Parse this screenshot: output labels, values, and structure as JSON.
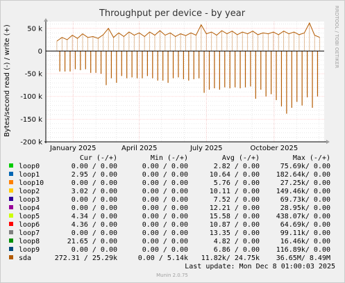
{
  "colors": {
    "background": "#F0F0F0",
    "canvas": "#FFFFFF",
    "grid_major": "#FFC8C8",
    "grid_minor": "#D8D8D8",
    "text": "#000000",
    "muted": "#A0A0A0",
    "sda": "#B35A00"
  },
  "chart_data": {
    "type": "line",
    "title": "Throughput per device - by year",
    "ylabel": "Bytes/second read (-) / write (+)",
    "ylim": [
      -200000,
      65000
    ],
    "y_ticks": [
      {
        "value": 50000,
        "label": "50 k"
      },
      {
        "value": 0,
        "label": "0"
      },
      {
        "value": -50000,
        "label": "-50 k"
      },
      {
        "value": -100000,
        "label": "-100 k"
      },
      {
        "value": -150000,
        "label": "-150 k"
      },
      {
        "value": -200000,
        "label": "-200 k"
      }
    ],
    "x_range": [
      "2024-11-25",
      "2025-12-08"
    ],
    "x_ticks": [
      {
        "date": "2025-01-01",
        "label": "January 2025"
      },
      {
        "date": "2025-04-01",
        "label": "April 2025"
      },
      {
        "date": "2025-07-01",
        "label": "July 2025"
      },
      {
        "date": "2025-10-01",
        "label": "October 2025"
      }
    ],
    "grid": true,
    "legend_position": "bottom",
    "series": [
      {
        "name": "sda",
        "color": "#B35A00",
        "read_spikes": [
          {
            "date": "2024-12-14",
            "value": -45000
          },
          {
            "date": "2024-12-21",
            "value": -45000
          },
          {
            "date": "2024-12-28",
            "value": -45000
          },
          {
            "date": "2025-01-04",
            "value": -40000
          },
          {
            "date": "2025-01-11",
            "value": -42000
          },
          {
            "date": "2025-01-18",
            "value": -40000
          },
          {
            "date": "2025-01-25",
            "value": -48000
          },
          {
            "date": "2025-02-01",
            "value": -48000
          },
          {
            "date": "2025-02-08",
            "value": -50000
          },
          {
            "date": "2025-02-15",
            "value": -75000
          },
          {
            "date": "2025-02-22",
            "value": -60000
          },
          {
            "date": "2025-03-01",
            "value": -70000
          },
          {
            "date": "2025-03-08",
            "value": -55000
          },
          {
            "date": "2025-03-15",
            "value": -60000
          },
          {
            "date": "2025-03-22",
            "value": -58000
          },
          {
            "date": "2025-03-29",
            "value": -60000
          },
          {
            "date": "2025-04-05",
            "value": -60000
          },
          {
            "date": "2025-04-12",
            "value": -55000
          },
          {
            "date": "2025-04-19",
            "value": -60000
          },
          {
            "date": "2025-04-26",
            "value": -65000
          },
          {
            "date": "2025-05-03",
            "value": -65000
          },
          {
            "date": "2025-05-10",
            "value": -70000
          },
          {
            "date": "2025-05-17",
            "value": -60000
          },
          {
            "date": "2025-05-24",
            "value": -58000
          },
          {
            "date": "2025-05-31",
            "value": -62000
          },
          {
            "date": "2025-06-07",
            "value": -65000
          },
          {
            "date": "2025-06-14",
            "value": -62000
          },
          {
            "date": "2025-06-21",
            "value": -60000
          },
          {
            "date": "2025-06-28",
            "value": -92000
          },
          {
            "date": "2025-07-05",
            "value": -85000
          },
          {
            "date": "2025-07-12",
            "value": -82000
          },
          {
            "date": "2025-07-19",
            "value": -85000
          },
          {
            "date": "2025-07-26",
            "value": -80000
          },
          {
            "date": "2025-08-02",
            "value": -82000
          },
          {
            "date": "2025-08-09",
            "value": -80000
          },
          {
            "date": "2025-08-16",
            "value": -82000
          },
          {
            "date": "2025-08-23",
            "value": -80000
          },
          {
            "date": "2025-08-30",
            "value": -78000
          },
          {
            "date": "2025-09-06",
            "value": -105000
          },
          {
            "date": "2025-09-13",
            "value": -85000
          },
          {
            "date": "2025-09-20",
            "value": -100000
          },
          {
            "date": "2025-09-27",
            "value": -95000
          },
          {
            "date": "2025-10-04",
            "value": -108000
          },
          {
            "date": "2025-10-11",
            "value": -122000
          },
          {
            "date": "2025-10-18",
            "value": -138000
          },
          {
            "date": "2025-10-25",
            "value": -125000
          },
          {
            "date": "2025-11-01",
            "value": -112000
          },
          {
            "date": "2025-11-08",
            "value": -120000
          },
          {
            "date": "2025-11-15",
            "value": -102000
          },
          {
            "date": "2025-11-22",
            "value": -125000
          },
          {
            "date": "2025-11-29",
            "value": -100000
          }
        ],
        "write_points": [
          {
            "date": "2024-12-10",
            "value": 22000
          },
          {
            "date": "2024-12-17",
            "value": 30000
          },
          {
            "date": "2024-12-24",
            "value": 25000
          },
          {
            "date": "2024-12-31",
            "value": 35000
          },
          {
            "date": "2025-01-07",
            "value": 28000
          },
          {
            "date": "2025-01-14",
            "value": 38000
          },
          {
            "date": "2025-01-21",
            "value": 30000
          },
          {
            "date": "2025-01-28",
            "value": 32000
          },
          {
            "date": "2025-02-04",
            "value": 28000
          },
          {
            "date": "2025-02-11",
            "value": 36000
          },
          {
            "date": "2025-02-18",
            "value": 50000
          },
          {
            "date": "2025-02-25",
            "value": 30000
          },
          {
            "date": "2025-03-04",
            "value": 40000
          },
          {
            "date": "2025-03-11",
            "value": 32000
          },
          {
            "date": "2025-03-18",
            "value": 42000
          },
          {
            "date": "2025-03-25",
            "value": 35000
          },
          {
            "date": "2025-04-01",
            "value": 40000
          },
          {
            "date": "2025-04-08",
            "value": 32000
          },
          {
            "date": "2025-04-15",
            "value": 42000
          },
          {
            "date": "2025-04-22",
            "value": 35000
          },
          {
            "date": "2025-04-29",
            "value": 45000
          },
          {
            "date": "2025-05-06",
            "value": 35000
          },
          {
            "date": "2025-05-13",
            "value": 40000
          },
          {
            "date": "2025-05-20",
            "value": 32000
          },
          {
            "date": "2025-05-27",
            "value": 38000
          },
          {
            "date": "2025-06-03",
            "value": 34000
          },
          {
            "date": "2025-06-10",
            "value": 40000
          },
          {
            "date": "2025-06-17",
            "value": 35000
          },
          {
            "date": "2025-06-24",
            "value": 58000
          },
          {
            "date": "2025-07-01",
            "value": 38000
          },
          {
            "date": "2025-07-08",
            "value": 42000
          },
          {
            "date": "2025-07-15",
            "value": 35000
          },
          {
            "date": "2025-07-22",
            "value": 45000
          },
          {
            "date": "2025-07-29",
            "value": 38000
          },
          {
            "date": "2025-08-05",
            "value": 44000
          },
          {
            "date": "2025-08-12",
            "value": 36000
          },
          {
            "date": "2025-08-19",
            "value": 42000
          },
          {
            "date": "2025-08-26",
            "value": 38000
          },
          {
            "date": "2025-09-02",
            "value": 44000
          },
          {
            "date": "2025-09-09",
            "value": 36000
          },
          {
            "date": "2025-09-16",
            "value": 40000
          },
          {
            "date": "2025-09-23",
            "value": 38000
          },
          {
            "date": "2025-09-30",
            "value": 42000
          },
          {
            "date": "2025-10-07",
            "value": 36000
          },
          {
            "date": "2025-10-14",
            "value": 44000
          },
          {
            "date": "2025-10-21",
            "value": 38000
          },
          {
            "date": "2025-10-28",
            "value": 42000
          },
          {
            "date": "2025-11-04",
            "value": 36000
          },
          {
            "date": "2025-11-11",
            "value": 40000
          },
          {
            "date": "2025-11-18",
            "value": 62000
          },
          {
            "date": "2025-11-25",
            "value": 35000
          },
          {
            "date": "2025-12-02",
            "value": 30000
          }
        ]
      }
    ]
  },
  "legend": {
    "headers": {
      "cur": "Cur (-/+)",
      "min": "Min (-/+)",
      "avg": "Avg (-/+)",
      "max": "Max (-/+)"
    },
    "rows": [
      {
        "name": "loop0",
        "color": "#00CC00",
        "cur": "0.00 /  0.00",
        "min": "0.00 /  0.00",
        "avg": "2.82 /  0.00",
        "max": "75.69k/  0.00"
      },
      {
        "name": "loop1",
        "color": "#0066B3",
        "cur": "2.95 /  0.00",
        "min": "0.00 /  0.00",
        "avg": "10.64 /  0.00",
        "max": "182.64k/  0.00"
      },
      {
        "name": "loop10",
        "color": "#FF8000",
        "cur": "0.00 /  0.00",
        "min": "0.00 /  0.00",
        "avg": "5.76 /  0.00",
        "max": "27.25k/  0.00"
      },
      {
        "name": "loop2",
        "color": "#FFCC00",
        "cur": "3.02 /  0.00",
        "min": "0.00 /  0.00",
        "avg": "10.11 /  0.00",
        "max": "149.46k/  0.00"
      },
      {
        "name": "loop3",
        "color": "#330099",
        "cur": "0.00 /  0.00",
        "min": "0.00 /  0.00",
        "avg": "7.52 /  0.00",
        "max": "69.73k/  0.00"
      },
      {
        "name": "loop4",
        "color": "#990099",
        "cur": "0.00 /  0.00",
        "min": "0.00 /  0.00",
        "avg": "12.21 /  0.00",
        "max": "28.95k/  0.00"
      },
      {
        "name": "loop5",
        "color": "#CCFF00",
        "cur": "4.34 /  0.00",
        "min": "0.00 /  0.00",
        "avg": "15.58 /  0.00",
        "max": "438.07k/  0.00"
      },
      {
        "name": "loop6",
        "color": "#FF0000",
        "cur": "4.36 /  0.00",
        "min": "0.00 /  0.00",
        "avg": "10.87 /  0.00",
        "max": "64.69k/  0.00"
      },
      {
        "name": "loop7",
        "color": "#808080",
        "cur": "0.00 /  0.00",
        "min": "0.00 /  0.00",
        "avg": "13.35 /  0.00",
        "max": "99.11k/  0.00"
      },
      {
        "name": "loop8",
        "color": "#008F00",
        "cur": "21.65 /  0.00",
        "min": "0.00 /  0.00",
        "avg": "4.82 /  0.00",
        "max": "16.46k/  0.00"
      },
      {
        "name": "loop9",
        "color": "#00487D",
        "cur": "0.00 /  0.00",
        "min": "0.00 /  0.00",
        "avg": "6.86 /  0.00",
        "max": "116.89k/  0.00"
      },
      {
        "name": "sda",
        "color": "#B35A00",
        "cur": "272.31 / 25.29k",
        "min": "0.00 /  5.14k",
        "avg": "11.82k/ 24.75k",
        "max": "36.65M/  8.49M"
      }
    ]
  },
  "footer": {
    "last_update": "Last update: Mon Dec  8 01:00:03 2025",
    "watermark": "RRDTOOL / TOBI OETIKER",
    "version": "Munin 2.0.75"
  }
}
